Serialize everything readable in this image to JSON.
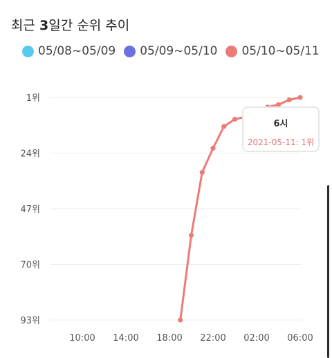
{
  "title_prefix": "최근 ",
  "title_bold": "3",
  "title_suffix": "일간 순위 추이",
  "legend": [
    {
      "label": "05/08~05/09",
      "color": "#5bc8ef"
    },
    {
      "label": "05/09~05/10",
      "color": "#6b72e0"
    },
    {
      "label": "05/10~05/11",
      "color": "#ec7b78"
    }
  ],
  "tooltip": {
    "title": "6시",
    "value": "2021-05-11: 1위"
  },
  "chart_data": {
    "type": "line",
    "x_ticks": [
      "10:00",
      "14:00",
      "18:00",
      "22:00",
      "02:00",
      "06:00"
    ],
    "y_ticks": [
      "1위",
      "24위",
      "47위",
      "70위",
      "93위"
    ],
    "y_tick_values": [
      1,
      24,
      47,
      70,
      93
    ],
    "ylim": [
      1,
      93
    ],
    "y_inverted": true,
    "series": [
      {
        "name": "05/10~05/11",
        "color": "#ec7b78",
        "x": [
          "19:00",
          "20:00",
          "21:00",
          "22:00",
          "23:00",
          "00:00",
          "01:00",
          "02:00",
          "03:00",
          "04:00",
          "05:00",
          "06:00"
        ],
        "values": [
          93,
          58,
          32,
          22,
          13,
          10,
          9,
          7,
          5,
          4,
          2,
          1
        ]
      }
    ]
  }
}
